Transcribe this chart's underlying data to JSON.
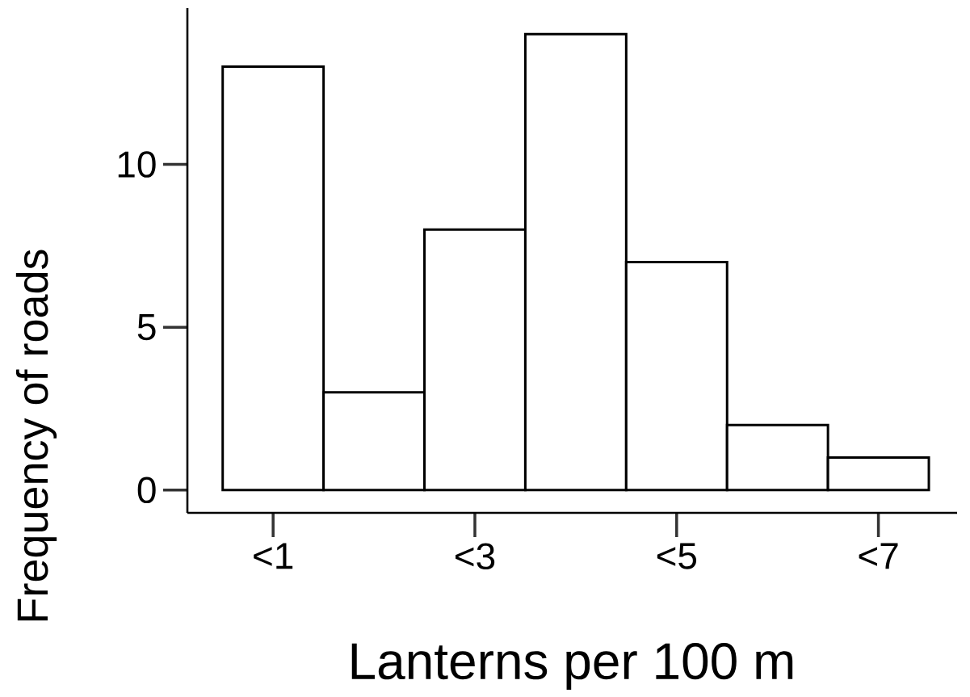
{
  "chart_data": {
    "type": "bar",
    "xlabel": "Lanterns per 100 m",
    "ylabel": "Frequency of roads",
    "categories": [
      "<1",
      null,
      "<3",
      null,
      "<5",
      null,
      "<7"
    ],
    "values": [
      13,
      3,
      8,
      14,
      7,
      2,
      1
    ],
    "color": "#ffffff",
    "ylim": [
      -0.7,
      14.8
    ],
    "yticks": [
      0,
      5,
      10
    ],
    "grid": false
  }
}
